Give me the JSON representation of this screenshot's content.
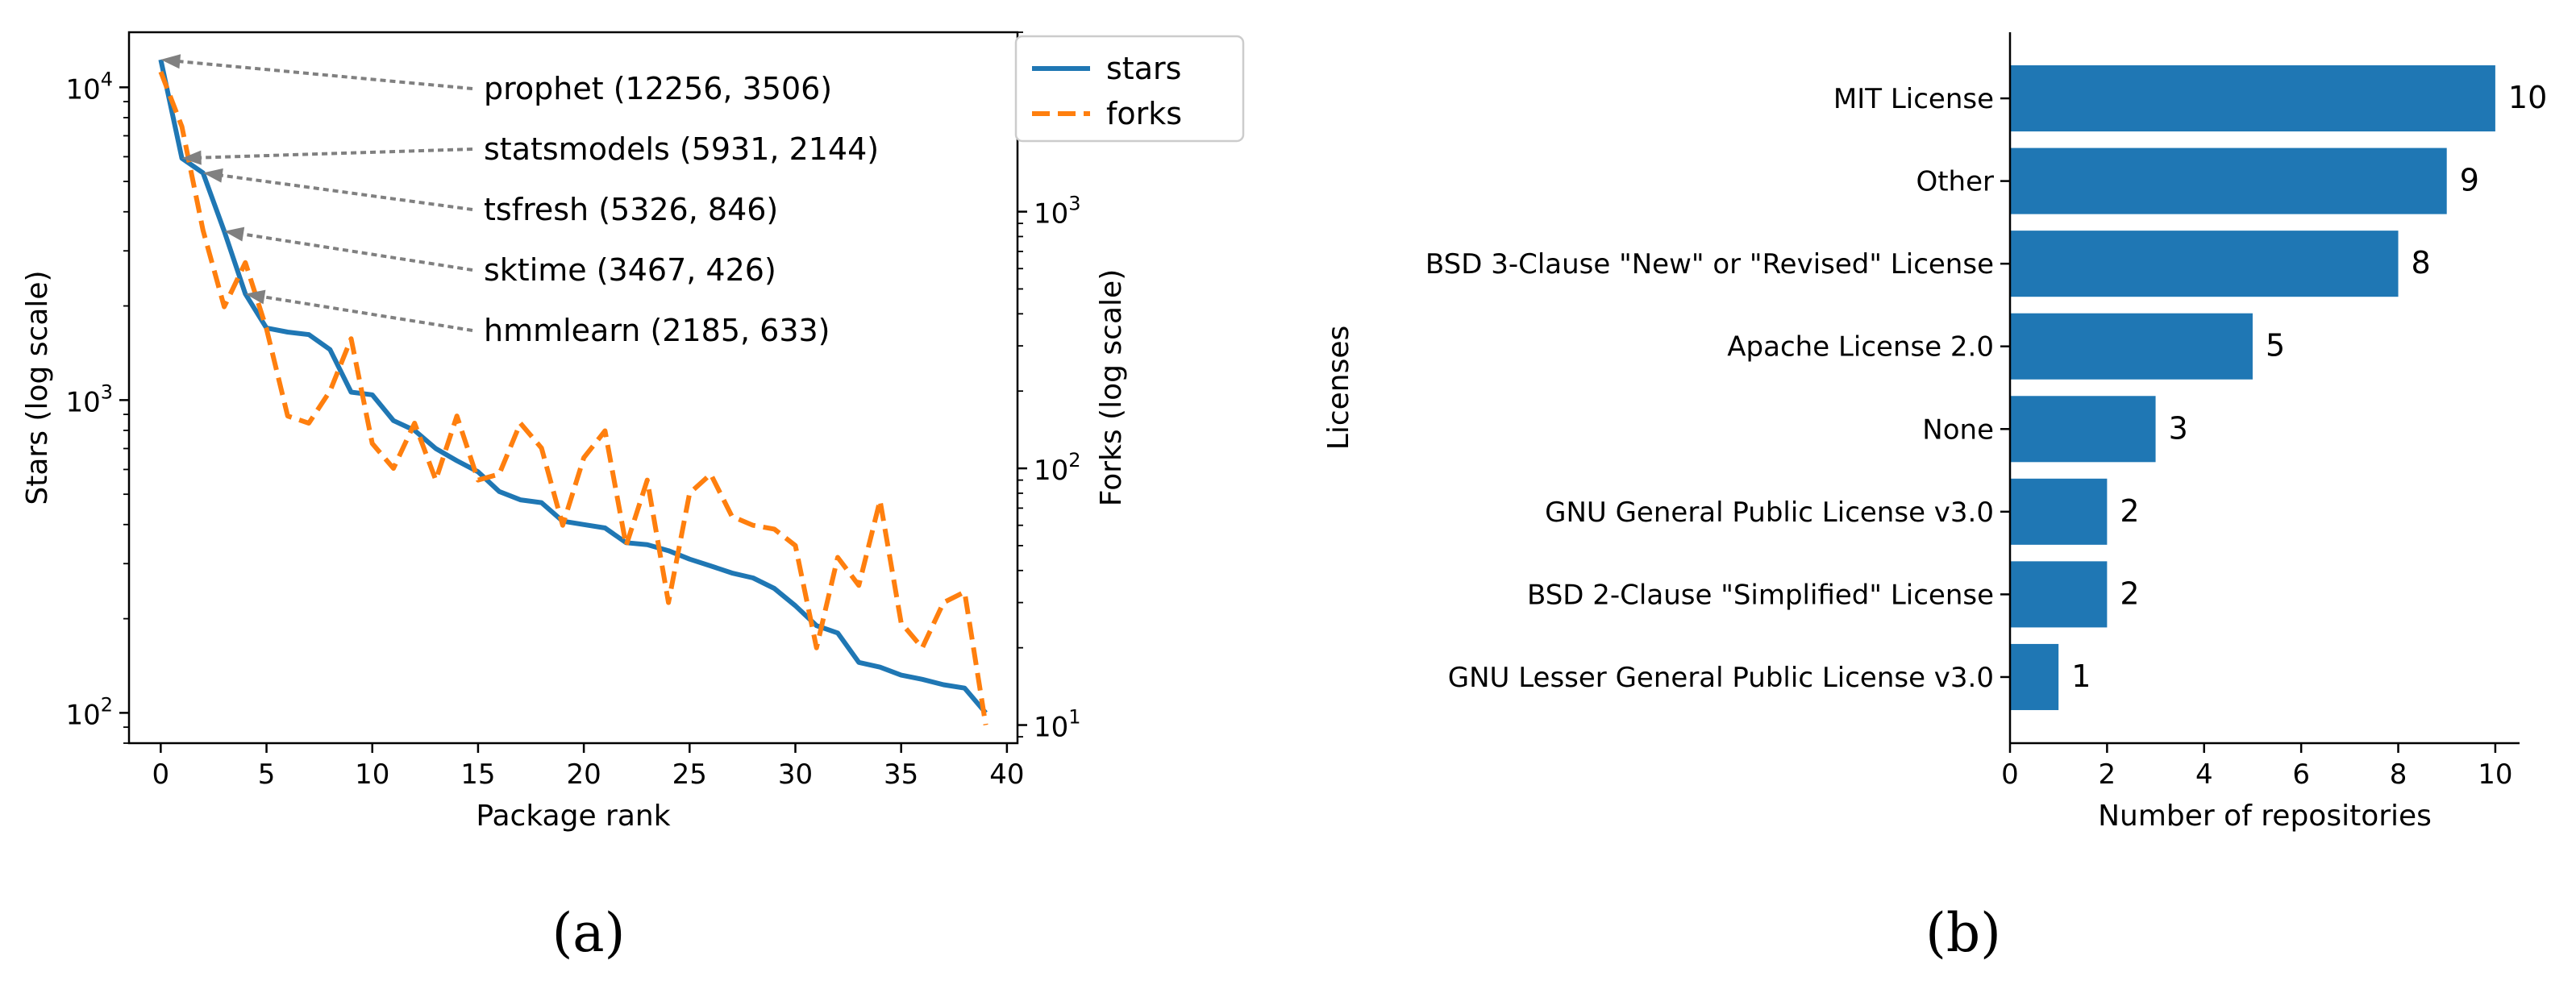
{
  "colors": {
    "stars": "#1f77b4",
    "forks": "#ff7f0e",
    "bars": "#1f77b4",
    "arrows": "#808080"
  },
  "captions": {
    "a": "(a)",
    "b": "(b)"
  },
  "chart_data": [
    {
      "type": "line",
      "xlabel": "Package rank",
      "ylabel": "Stars (log scale)",
      "y2label": "Forks (log scale)",
      "xlim": [
        -1.5,
        40.5
      ],
      "xticks": [
        0,
        5,
        10,
        15,
        20,
        25,
        30,
        35,
        40
      ],
      "x_tick_labels": [
        "0",
        "5",
        "10",
        "15",
        "20",
        "25",
        "30",
        "35",
        "40"
      ],
      "y_scale": "log",
      "ylim": [
        80,
        15000
      ],
      "y_major_ticks": [
        100,
        1000,
        10000
      ],
      "y_tick_labels": [
        {
          "base": "10",
          "exp": "2"
        },
        {
          "base": "10",
          "exp": "3"
        },
        {
          "base": "10",
          "exp": "4"
        }
      ],
      "y2_scale": "log",
      "y2lim": [
        8.5,
        5000
      ],
      "y2_major_ticks": [
        10,
        100,
        1000
      ],
      "y2_tick_labels": [
        {
          "base": "10",
          "exp": "1"
        },
        {
          "base": "10",
          "exp": "2"
        },
        {
          "base": "10",
          "exp": "3"
        }
      ],
      "legend": {
        "position": "outside-top-right",
        "entries": [
          "stars",
          "forks"
        ]
      },
      "series": [
        {
          "name": "stars",
          "axis": "left",
          "style": "solid",
          "x": [
            0,
            1,
            2,
            3,
            4,
            5,
            6,
            7,
            8,
            9,
            10,
            11,
            12,
            13,
            14,
            15,
            16,
            17,
            18,
            19,
            20,
            21,
            22,
            23,
            24,
            25,
            26,
            27,
            28,
            29,
            30,
            31,
            32,
            33,
            34,
            35,
            36,
            37,
            38,
            39
          ],
          "values": [
            12256,
            5931,
            5326,
            3467,
            2185,
            1700,
            1650,
            1620,
            1450,
            1060,
            1040,
            860,
            800,
            700,
            640,
            590,
            510,
            480,
            470,
            410,
            400,
            390,
            350,
            345,
            330,
            310,
            295,
            280,
            270,
            250,
            220,
            190,
            180,
            145,
            140,
            132,
            128,
            123,
            120,
            100
          ]
        },
        {
          "name": "forks",
          "axis": "right",
          "style": "dashed",
          "x": [
            0,
            1,
            2,
            3,
            4,
            5,
            6,
            7,
            8,
            9,
            10,
            11,
            12,
            13,
            14,
            15,
            16,
            17,
            18,
            19,
            20,
            21,
            22,
            23,
            24,
            25,
            26,
            27,
            28,
            29,
            30,
            31,
            32,
            33,
            34,
            35,
            36,
            37,
            38,
            39
          ],
          "values": [
            3506,
            2144,
            846,
            426,
            633,
            350,
            160,
            150,
            200,
            320,
            125,
            100,
            150,
            90,
            160,
            90,
            95,
            150,
            120,
            60,
            110,
            140,
            50,
            90,
            30,
            80,
            95,
            65,
            60,
            58,
            50,
            20,
            45,
            35,
            75,
            25,
            20,
            30,
            33,
            10
          ]
        }
      ],
      "annotations": [
        {
          "text": "prophet (12256, 3506)",
          "x": 0,
          "y": 12256
        },
        {
          "text": "statsmodels (5931, 2144)",
          "x": 1,
          "y": 5931
        },
        {
          "text": "tsfresh (5326, 846)",
          "x": 2,
          "y": 5326
        },
        {
          "text": "sktime (3467, 426)",
          "x": 3,
          "y": 3467
        },
        {
          "text": "hmmlearn (2185, 633)",
          "x": 4,
          "y": 2185
        }
      ]
    },
    {
      "type": "bar",
      "orientation": "horizontal",
      "xlabel": "Number of repositories",
      "ylabel": "Licenses",
      "xlim": [
        0,
        10.5
      ],
      "xticks": [
        0,
        2,
        4,
        6,
        8,
        10
      ],
      "x_tick_labels": [
        "0",
        "2",
        "4",
        "6",
        "8",
        "10"
      ],
      "categories": [
        "MIT License",
        "Other",
        "BSD 3-Clause \"New\" or \"Revised\" License",
        "Apache License 2.0",
        "None",
        "GNU General Public License v3.0",
        "BSD 2-Clause \"Simplified\" License",
        "GNU Lesser General Public License v3.0"
      ],
      "values": [
        10,
        9,
        8,
        5,
        3,
        2,
        2,
        1
      ],
      "value_labels": [
        "10",
        "9",
        "8",
        "5",
        "3",
        "2",
        "2",
        "1"
      ]
    }
  ]
}
